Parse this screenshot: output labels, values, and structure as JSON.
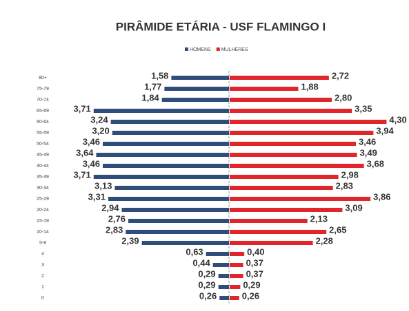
{
  "chart_data": {
    "type": "pyramid",
    "title": "PIRÂMIDE ETÁRIA - USF FLAMINGO I",
    "categories": [
      "80+",
      "75-79",
      "70-74",
      "65-69",
      "60-64",
      "55-59",
      "50-54",
      "45-49",
      "40-44",
      "35-39",
      "30-34",
      "25-29",
      "20-24",
      "15-19",
      "10-14",
      "5-9",
      "4",
      "3",
      "2",
      "1",
      "0"
    ],
    "series": [
      {
        "name": "HOMENS",
        "color": "#2e4d7b",
        "side": "left",
        "values": [
          1.58,
          1.77,
          1.84,
          3.71,
          3.24,
          3.2,
          3.46,
          3.64,
          3.46,
          3.71,
          3.13,
          3.31,
          2.94,
          2.76,
          2.83,
          2.39,
          0.63,
          0.44,
          0.29,
          0.29,
          0.26
        ],
        "value_labels": [
          "1,58",
          "1,77",
          "1,84",
          "3,71",
          "3,24",
          "3,20",
          "3,46",
          "3,64",
          "3,46",
          "3,71",
          "3,13",
          "3,31",
          "2,94",
          "2,76",
          "2,83",
          "2,39",
          "0,63",
          "0,44",
          "0,29",
          "0,29",
          "0,26"
        ]
      },
      {
        "name": "MULHERES",
        "color": "#e0262b",
        "side": "right",
        "values": [
          2.72,
          1.88,
          2.8,
          3.35,
          4.3,
          3.94,
          3.46,
          3.49,
          3.68,
          2.98,
          2.83,
          3.86,
          3.09,
          2.13,
          2.65,
          2.28,
          0.4,
          0.37,
          0.37,
          0.29,
          0.26
        ],
        "value_labels": [
          "2,72",
          "1,88",
          "2,80",
          "3,35",
          "4,30",
          "3,94",
          "3,46",
          "3,49",
          "3,68",
          "2,98",
          "2,83",
          "3,86",
          "3,09",
          "2,13",
          "2,65",
          "2,28",
          "0,40",
          "0,37",
          "0,37",
          "0,29",
          "0,26"
        ]
      }
    ],
    "xlim": [
      0,
      4.5
    ]
  }
}
